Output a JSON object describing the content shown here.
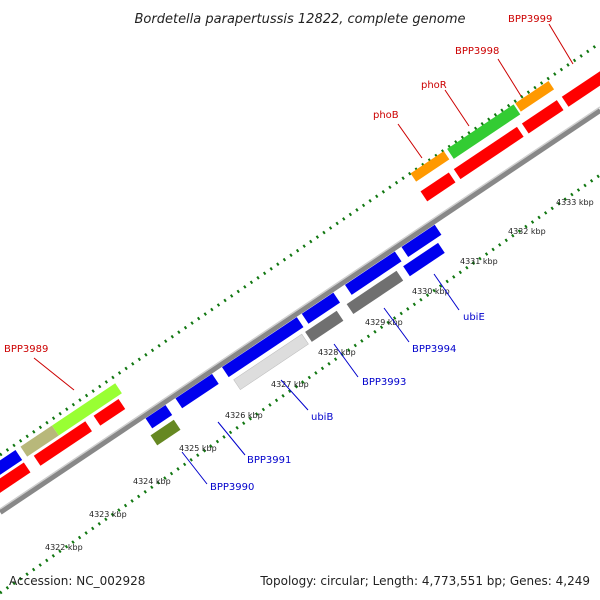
{
  "title": "Bordetella parapertussis 12822, complete genome",
  "footer": {
    "accession": "Accession: NC_002928",
    "summary": "Topology: circular; Length: 4,773,551 bp; Genes: 4,249"
  },
  "colors": {
    "forward_label": "#cc0000",
    "reverse_label": "#0000cc",
    "red_gene": "#ff0000",
    "blue_gene": "#0000ee",
    "green_gene": "#33cc33",
    "lime_gene": "#99ff33",
    "orange_gene": "#ff9900",
    "khaki_gene": "#b8b87a",
    "olive_gene": "#668822",
    "gray_gene": "#707070",
    "lightgray_gene": "#dddddd",
    "ruler_tick": "#117711",
    "backbone": "#888888"
  },
  "ticks": [
    {
      "label": "4322 kbp"
    },
    {
      "label": "4323 kbp"
    },
    {
      "label": "4324 kbp"
    },
    {
      "label": "4325 kbp"
    },
    {
      "label": "4326 kbp"
    },
    {
      "label": "4327 kbp"
    },
    {
      "label": "4328 kbp"
    },
    {
      "label": "4329 kbp"
    },
    {
      "label": "4330 kbp"
    },
    {
      "label": "4331 kbp"
    },
    {
      "label": "4332 kbp"
    },
    {
      "label": "4333 kbp"
    }
  ],
  "forward_labels": [
    {
      "text": "BPP3989"
    },
    {
      "text": "phoB"
    },
    {
      "text": "phoR"
    },
    {
      "text": "BPP3998"
    },
    {
      "text": "BPP3999"
    }
  ],
  "reverse_labels": [
    {
      "text": "BPP3990"
    },
    {
      "text": "BPP3991"
    },
    {
      "text": "ubiB"
    },
    {
      "text": "BPP3993"
    },
    {
      "text": "BPP3994"
    },
    {
      "text": "ubiE"
    }
  ]
}
